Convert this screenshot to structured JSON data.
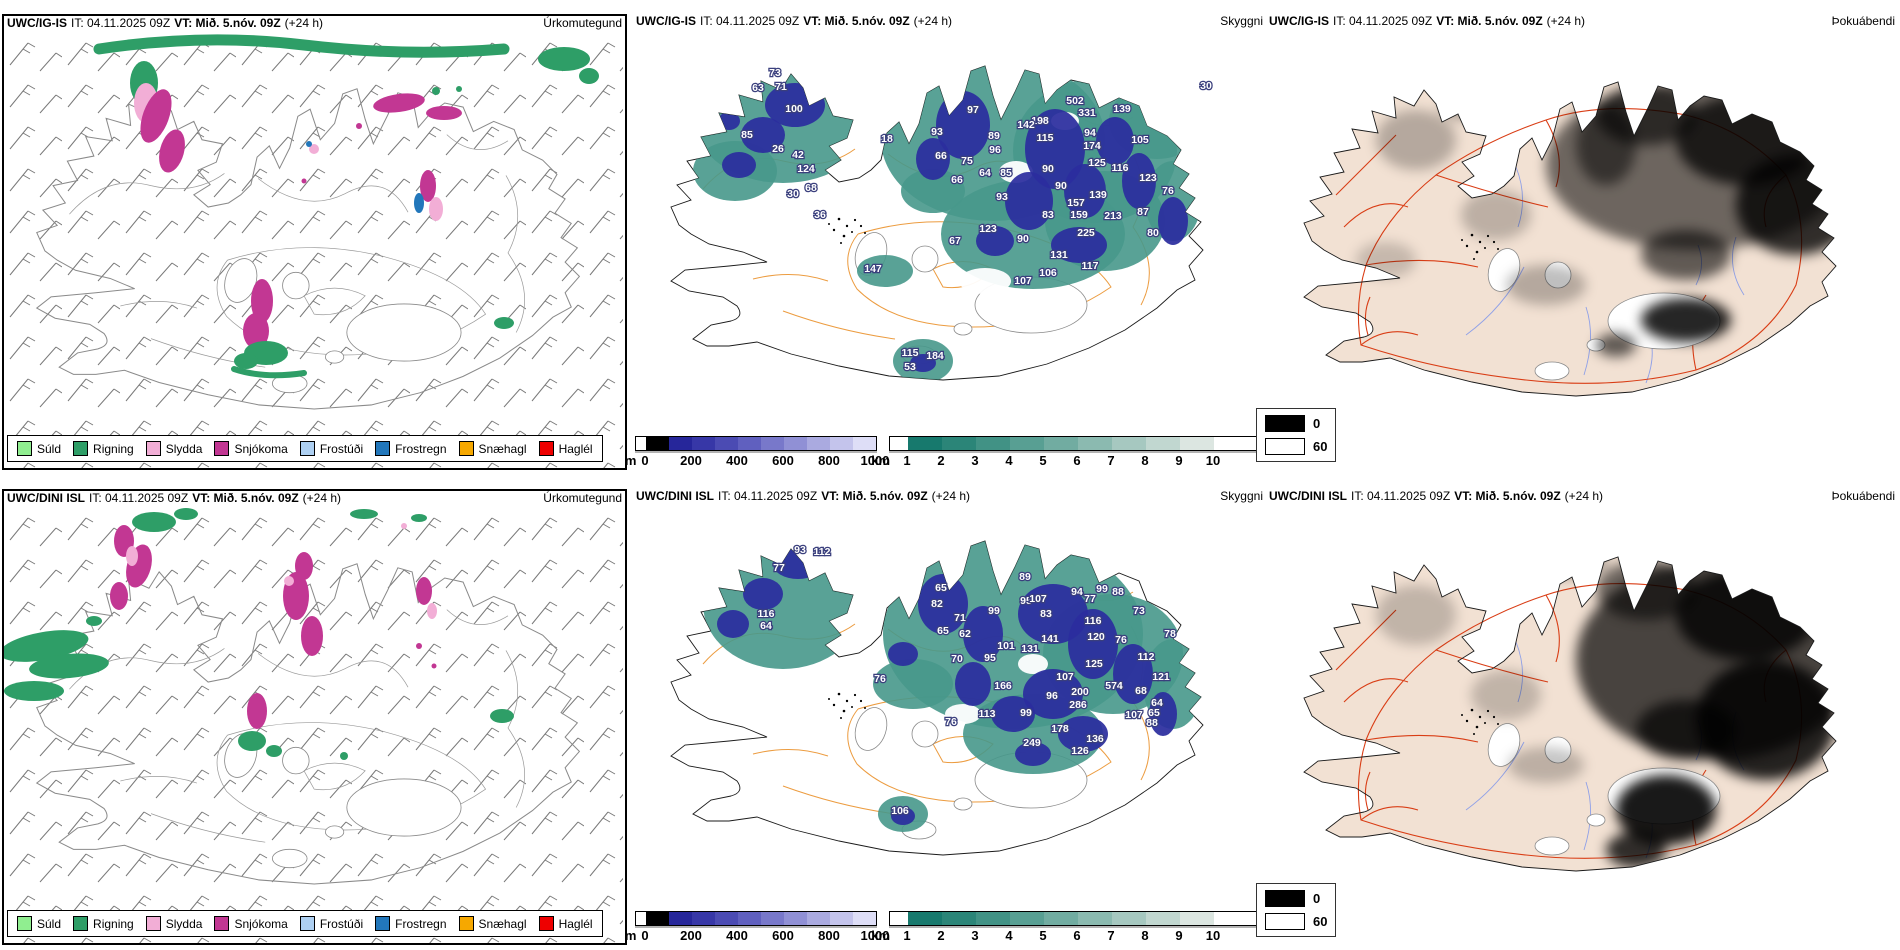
{
  "panels": {
    "precip_title": "Úrkomutegund",
    "visibility_title": "Skyggni",
    "fog_title": "Þokuábendi"
  },
  "rows": [
    {
      "model": "UWC/IG-IS",
      "init_time": "IT: 04.11.2025 09Z",
      "valid_time": "VT: Mið. 5.nóv. 09Z",
      "lead": "(+24 h)",
      "vis_values": [
        [
          442,
          75,
          "502"
        ],
        [
          454,
          87,
          "331"
        ],
        [
          489,
          83,
          "139"
        ],
        [
          407,
          95,
          "198"
        ],
        [
          393,
          99,
          "142"
        ],
        [
          412,
          112,
          "115"
        ],
        [
          457,
          107,
          "94"
        ],
        [
          459,
          120,
          "174"
        ],
        [
          464,
          137,
          "125"
        ],
        [
          487,
          142,
          "116"
        ],
        [
          415,
          143,
          "90"
        ],
        [
          428,
          160,
          "90"
        ],
        [
          465,
          169,
          "139"
        ],
        [
          443,
          177,
          "157"
        ],
        [
          446,
          189,
          "159"
        ],
        [
          480,
          190,
          "213"
        ],
        [
          415,
          189,
          "83"
        ],
        [
          453,
          207,
          "225"
        ],
        [
          355,
          203,
          "123"
        ],
        [
          369,
          171,
          "93"
        ],
        [
          308,
          130,
          "66"
        ],
        [
          334,
          135,
          "75"
        ],
        [
          352,
          147,
          "64"
        ],
        [
          373,
          147,
          "85"
        ],
        [
          324,
          154,
          "66"
        ],
        [
          362,
          124,
          "96"
        ],
        [
          361,
          110,
          "89"
        ],
        [
          340,
          84,
          "97"
        ],
        [
          304,
          106,
          "93"
        ],
        [
          507,
          114,
          "105"
        ],
        [
          515,
          152,
          "123"
        ],
        [
          535,
          165,
          "76"
        ],
        [
          510,
          186,
          "87"
        ],
        [
          520,
          207,
          "80"
        ],
        [
          142,
          47,
          "73"
        ],
        [
          125,
          62,
          "63"
        ],
        [
          148,
          61,
          "71"
        ],
        [
          161,
          83,
          "100"
        ],
        [
          114,
          109,
          "85"
        ],
        [
          145,
          123,
          "26"
        ],
        [
          165,
          129,
          "42"
        ],
        [
          173,
          143,
          "124"
        ],
        [
          178,
          162,
          "68"
        ],
        [
          160,
          168,
          "30"
        ],
        [
          187,
          189,
          "36"
        ],
        [
          254,
          113,
          "18"
        ],
        [
          322,
          215,
          "67"
        ],
        [
          390,
          213,
          "90"
        ],
        [
          426,
          229,
          "131"
        ],
        [
          415,
          247,
          "106"
        ],
        [
          390,
          255,
          "107"
        ],
        [
          457,
          240,
          "117"
        ],
        [
          240,
          243,
          "147"
        ],
        [
          277,
          327,
          "115"
        ],
        [
          302,
          330,
          "184"
        ],
        [
          277,
          341,
          "53"
        ],
        [
          573,
          60,
          "30"
        ]
      ]
    },
    {
      "model": "UWC/DINI ISL",
      "init_time": "IT: 04.11.2025 09Z",
      "valid_time": "VT: Mið. 5.nóv. 09Z",
      "lead": "(+24 h)",
      "vis_values": [
        [
          392,
          76,
          "89"
        ],
        [
          444,
          91,
          "94"
        ],
        [
          469,
          88,
          "99"
        ],
        [
          485,
          91,
          "88"
        ],
        [
          457,
          98,
          "77"
        ],
        [
          393,
          100,
          "95"
        ],
        [
          405,
          98,
          "107"
        ],
        [
          413,
          113,
          "83"
        ],
        [
          361,
          110,
          "99"
        ],
        [
          308,
          87,
          "65"
        ],
        [
          304,
          103,
          "82"
        ],
        [
          327,
          117,
          "71"
        ],
        [
          310,
          130,
          "65"
        ],
        [
          332,
          133,
          "62"
        ],
        [
          373,
          145,
          "101"
        ],
        [
          397,
          148,
          "131"
        ],
        [
          417,
          138,
          "141"
        ],
        [
          460,
          120,
          "116"
        ],
        [
          463,
          136,
          "120"
        ],
        [
          488,
          139,
          "76"
        ],
        [
          461,
          163,
          "125"
        ],
        [
          357,
          157,
          "95"
        ],
        [
          324,
          158,
          "70"
        ],
        [
          432,
          176,
          "107"
        ],
        [
          370,
          185,
          "166"
        ],
        [
          419,
          195,
          "96"
        ],
        [
          447,
          191,
          "200"
        ],
        [
          445,
          204,
          "286"
        ],
        [
          481,
          185,
          "574"
        ],
        [
          508,
          190,
          "68"
        ],
        [
          513,
          156,
          "112"
        ],
        [
          528,
          176,
          "121"
        ],
        [
          354,
          213,
          "113"
        ],
        [
          393,
          212,
          "99"
        ],
        [
          318,
          221,
          "76"
        ],
        [
          501,
          214,
          "107"
        ],
        [
          519,
          222,
          "88"
        ],
        [
          506,
          110,
          "73"
        ],
        [
          537,
          133,
          "78"
        ],
        [
          167,
          49,
          "93"
        ],
        [
          189,
          51,
          "112"
        ],
        [
          146,
          67,
          "77"
        ],
        [
          133,
          113,
          "116"
        ],
        [
          133,
          125,
          "64"
        ],
        [
          247,
          178,
          "76"
        ],
        [
          399,
          242,
          "249"
        ],
        [
          447,
          250,
          "126"
        ],
        [
          267,
          310,
          "106"
        ],
        [
          427,
          228,
          "178"
        ],
        [
          462,
          238,
          "136"
        ],
        [
          524,
          202,
          "64"
        ],
        [
          521,
          212,
          "65"
        ]
      ]
    }
  ],
  "precip_legend": {
    "items": [
      {
        "label": "Súld",
        "color": "#90ee90"
      },
      {
        "label": "Rigning",
        "color": "#2e9e67"
      },
      {
        "label": "Slydda",
        "color": "#f2aed6"
      },
      {
        "label": "Snjókoma",
        "color": "#c23793"
      },
      {
        "label": "Frostúði",
        "color": "#aed0f2"
      },
      {
        "label": "Frostregn",
        "color": "#2277bb"
      },
      {
        "label": "Snæhagl",
        "color": "#f6a800"
      },
      {
        "label": "Haglél",
        "color": "#ee0000"
      }
    ]
  },
  "vis_scale_m": {
    "unit": "m",
    "ticks": [
      "0",
      "200",
      "400",
      "600",
      "800",
      "1000"
    ],
    "segments": [
      "#ffffff",
      "#000000",
      "#26269a",
      "#3737a7",
      "#4b4bb3",
      "#6060bf",
      "#7878ca",
      "#9090d5",
      "#aaaae0",
      "#c4c4ec",
      "#dedef7"
    ]
  },
  "vis_scale_km": {
    "unit": "km",
    "ticks": [
      "1",
      "2",
      "3",
      "4",
      "5",
      "6",
      "7",
      "8",
      "9",
      "10"
    ],
    "segments": [
      "#ffffff",
      "#17796d",
      "#2b8578",
      "#419285",
      "#589f93",
      "#71aca1",
      "#8bbab0",
      "#a6c8c0",
      "#c1d7d0",
      "#dce6e1",
      "#ffffff"
    ]
  },
  "fog_scale": {
    "entries": [
      {
        "label": "0",
        "color": "#000000"
      },
      {
        "label": "60",
        "color": "#ffffff"
      }
    ]
  },
  "colors": {
    "visibility_low_m": "#2b2d9e",
    "visibility_km": "#47988b",
    "elevation_contour": "#ec9c40",
    "coastline": "#1a1a1a",
    "wind_barbs": "#7a7a7a",
    "fog_dark": "#000000",
    "fog_panel_land": "#f2e1d3",
    "roads": "#d93d15",
    "rivers": "#8fa0e8"
  }
}
